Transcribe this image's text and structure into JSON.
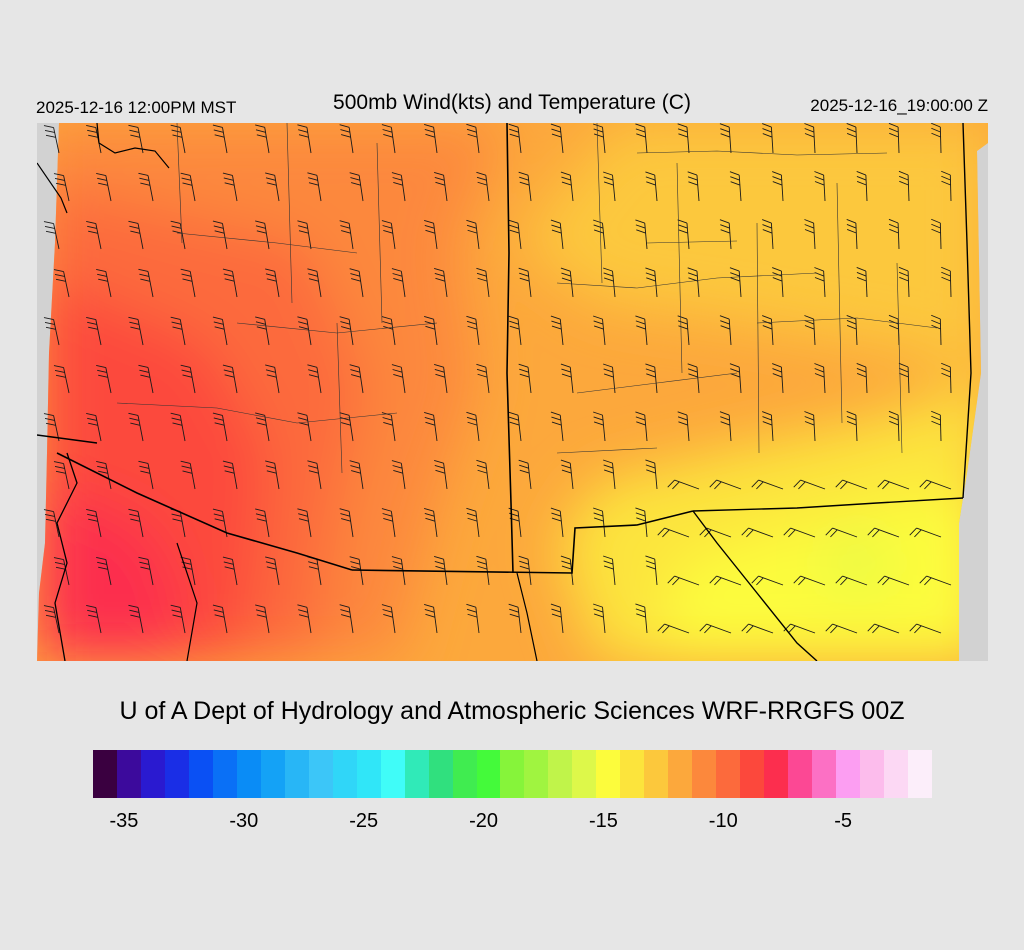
{
  "header": {
    "valid_local": "2025-12-16 12:00PM MST",
    "title": "500mb Wind(kts) and Temperature (C)",
    "valid_utc": "2025-12-16_19:00:00 Z"
  },
  "footer": {
    "credit": "U of A Dept of Hydrology and Atmospheric Sciences WRF-RRGFS 00Z"
  },
  "colorbar": {
    "colors": [
      "#3a0040",
      "#3c0a9c",
      "#2a1ad0",
      "#1a2ee6",
      "#0a50f4",
      "#0a70f6",
      "#0a8cf6",
      "#14a2f6",
      "#28b6f6",
      "#3cc6f8",
      "#30d6f8",
      "#30e6f8",
      "#40fcf8",
      "#30eab8",
      "#30e07e",
      "#40ec50",
      "#44fa3a",
      "#86f43a",
      "#a0f440",
      "#c0f44a",
      "#ddf84a",
      "#fcfc3c",
      "#fce43c",
      "#fcc83c",
      "#fca83c",
      "#fc883c",
      "#fc6a3c",
      "#fc483c",
      "#fc2e4e",
      "#fc4894",
      "#fc70c4",
      "#fc9ef2",
      "#fcbcec",
      "#fcd8f4",
      "#fceefa"
    ],
    "tick_labels": [
      "-35",
      "-30",
      "-25",
      "-20",
      "-15",
      "-10",
      "-5"
    ],
    "tick_values": [
      -35,
      -30,
      -25,
      -20,
      -15,
      -10,
      -5
    ],
    "min": -36,
    "max": -1
  },
  "map": {
    "field": "500mb temperature",
    "units": "C",
    "wind_units": "kts",
    "colors": {
      "cold": "#fc2e4e",
      "cool": "#fc483c",
      "mid": "#fc6a3c",
      "mild": "#fc883c",
      "warm1": "#fca83c",
      "warm2": "#fcc83c",
      "warm3": "#fce43c",
      "warm4": "#fcfc3c",
      "warm5": "#ddf84a",
      "no_data": "#d2d2d2",
      "boundary": "#000000"
    }
  }
}
